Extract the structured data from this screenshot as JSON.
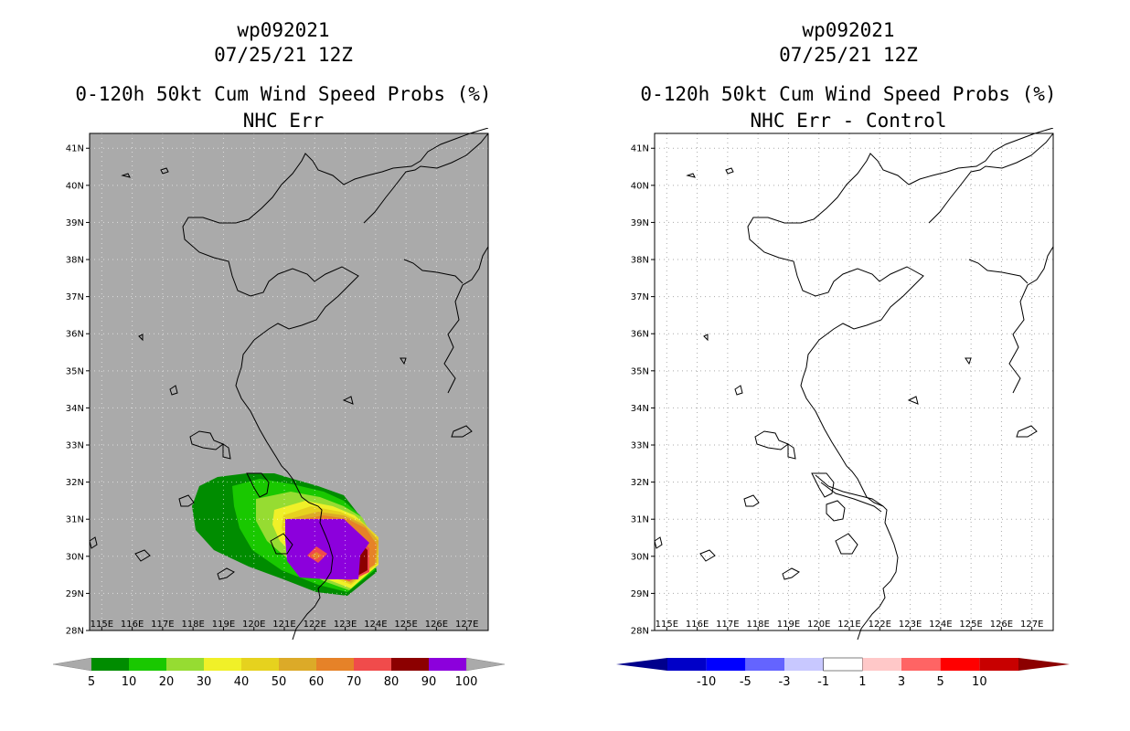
{
  "left_panel": {
    "title_lines": [
      "wp092021",
      "07/25/21 12Z",
      "0-120h 50kt Cum Wind Speed Probs (%)",
      "NHC Err"
    ],
    "lat_labels": [
      "41N",
      "40N",
      "39N",
      "38N",
      "37N",
      "36N",
      "35N",
      "34N",
      "33N",
      "32N",
      "31N",
      "30N",
      "29N",
      "28N"
    ],
    "lon_labels": [
      "115E",
      "116E",
      "117E",
      "118E",
      "119E",
      "120E",
      "121E",
      "122E",
      "123E",
      "124E",
      "125E",
      "126E",
      "127E"
    ],
    "background_color": "#aaaaaa",
    "colorbar": {
      "labels": [
        "5",
        "10",
        "20",
        "30",
        "40",
        "50",
        "60",
        "70",
        "80",
        "90",
        "100"
      ],
      "colors": [
        "#008c00",
        "#19c800",
        "#96dc32",
        "#f0f028",
        "#e6d21e",
        "#dcaa28",
        "#e68228",
        "#f04b4b",
        "#8c0000",
        "#8c00dc"
      ],
      "end_color": "#aaaaaa"
    }
  },
  "right_panel": {
    "title_lines": [
      "wp092021",
      "07/25/21 12Z",
      "0-120h 50kt Cum Wind Speed Probs (%)",
      "NHC Err - Control"
    ],
    "lat_labels": [
      "41N",
      "40N",
      "39N",
      "38N",
      "37N",
      "36N",
      "35N",
      "34N",
      "33N",
      "32N",
      "31N",
      "30N",
      "29N",
      "28N"
    ],
    "lon_labels": [
      "115E",
      "116E",
      "117E",
      "118E",
      "119E",
      "120E",
      "121E",
      "122E",
      "123E",
      "124E",
      "125E",
      "126E",
      "127E"
    ],
    "background_color": "#ffffff",
    "colorbar": {
      "labels": [
        "-10",
        "-5",
        "-3",
        "-1",
        "1",
        "3",
        "5",
        "10"
      ],
      "colors": [
        "#0000c8",
        "#0000ff",
        "#6464ff",
        "#c8c8ff",
        "#ffffff",
        "#ffc8c8",
        "#ff6464",
        "#ff0000",
        "#c80000"
      ],
      "low_end_color": "#00008c",
      "high_end_color": "#8c0000"
    }
  },
  "map_extent": {
    "lon": [
      114.6,
      127.7
    ],
    "lat": [
      28,
      41.4
    ]
  }
}
